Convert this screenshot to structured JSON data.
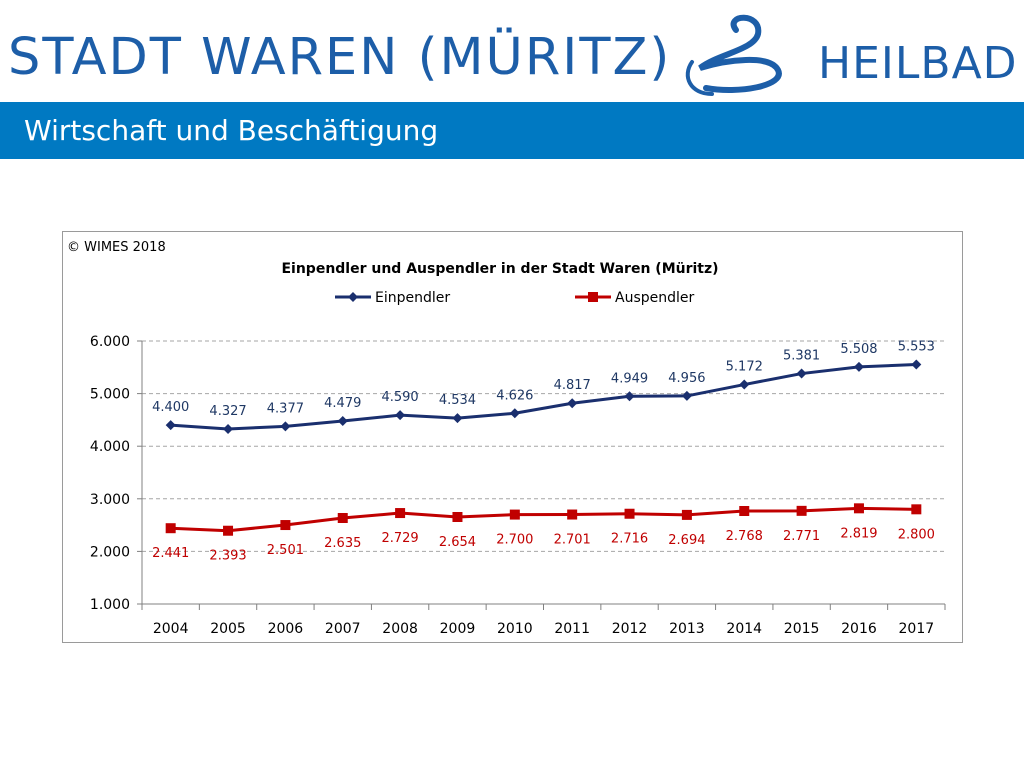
{
  "header": {
    "town": "STADT WAREN (MÜRITZ)",
    "spa": "HEILBAD",
    "logo_icon": "swan-wave-logo-icon",
    "brand_color": "#1d5ea8"
  },
  "title_bar": {
    "title": "Wirtschaft und Beschäftigung",
    "color": "#0079c2"
  },
  "chart": {
    "copyright": "© WIMES 2018"
  },
  "chart_data": {
    "type": "line",
    "title": "Einpendler und Auspendler in der Stadt Waren (Müritz)",
    "xlabel": "",
    "ylabel": "",
    "categories": [
      "2004",
      "2005",
      "2006",
      "2007",
      "2008",
      "2009",
      "2010",
      "2011",
      "2012",
      "2013",
      "2014",
      "2015",
      "2016",
      "2017"
    ],
    "ylim": [
      1000,
      6000
    ],
    "yticks": [
      1000,
      2000,
      3000,
      4000,
      5000,
      6000
    ],
    "ytick_labels": [
      "1.000",
      "2.000",
      "3.000",
      "4.000",
      "5.000",
      "6.000"
    ],
    "grid": true,
    "legend_position": "top",
    "series": [
      {
        "name": "Einpendler",
        "color": "#1a2f6e",
        "label_color": "#1f3864",
        "marker": "diamond",
        "values": [
          4400,
          4327,
          4377,
          4479,
          4590,
          4534,
          4626,
          4817,
          4949,
          4956,
          5172,
          5381,
          5508,
          5553
        ],
        "labels": [
          "4.400",
          "4.327",
          "4.377",
          "4.479",
          "4.590",
          "4.534",
          "4.626",
          "4.817",
          "4.949",
          "4.956",
          "5.172",
          "5.381",
          "5.508",
          "5.553"
        ]
      },
      {
        "name": "Auspendler",
        "color": "#c00000",
        "label_color": "#c00000",
        "marker": "square",
        "values": [
          2441,
          2393,
          2501,
          2635,
          2729,
          2654,
          2700,
          2701,
          2716,
          2694,
          2768,
          2771,
          2819,
          2800
        ],
        "labels": [
          "2.441",
          "2.393",
          "2.501",
          "2.635",
          "2.729",
          "2.654",
          "2.700",
          "2.701",
          "2.716",
          "2.694",
          "2.768",
          "2.771",
          "2.819",
          "2.800"
        ]
      }
    ]
  }
}
